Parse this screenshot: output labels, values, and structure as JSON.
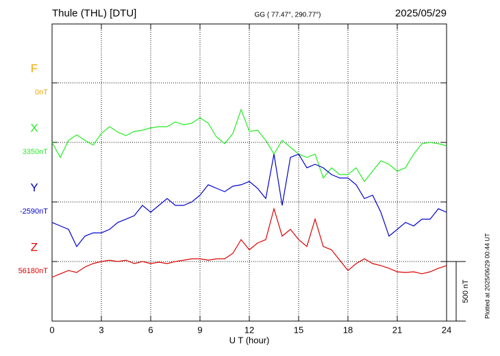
{
  "chart_data": {
    "type": "line",
    "title": "Thule (THL)  [DTU]",
    "subtitle": "GG ( 77.47°, 290.77°)",
    "date": "2025/05/29",
    "xlabel": "U T (hour)",
    "footnote": "Plotted at 2025/06/29 00:44 UT",
    "xlim": [
      0,
      24
    ],
    "xticks": [
      0,
      3,
      6,
      9,
      12,
      15,
      18,
      21,
      24
    ],
    "grid": true,
    "scale_bar": {
      "value": 500,
      "label": "500 nT"
    },
    "x": [
      0,
      0.5,
      1,
      1.5,
      2,
      2.5,
      3,
      3.5,
      4,
      4.5,
      5,
      5.5,
      6,
      6.5,
      7,
      7.5,
      8,
      8.5,
      9,
      9.5,
      10,
      10.5,
      11,
      11.5,
      12,
      12.5,
      13,
      13.5,
      14,
      14.5,
      15,
      15.5,
      16,
      16.5,
      17,
      17.5,
      18,
      18.5,
      19,
      19.5,
      20,
      20.5,
      21,
      21.5,
      22,
      22.5,
      23,
      23.5,
      24
    ],
    "series": [
      {
        "name": "F",
        "color": "#f0a800",
        "baseline": {
          "value": 0,
          "label": "0nT"
        }
      },
      {
        "name": "X",
        "color": "#22ee22",
        "baseline": {
          "value": 3350,
          "label": "3350nT"
        },
        "values": [
          3350,
          3224,
          3367,
          3413,
          3367,
          3327,
          3425,
          3482,
          3436,
          3407,
          3442,
          3453,
          3471,
          3482,
          3482,
          3522,
          3499,
          3511,
          3557,
          3511,
          3396,
          3339,
          3425,
          3626,
          3442,
          3453,
          3367,
          3252,
          3367,
          3310,
          3252,
          3224,
          3252,
          3051,
          3137,
          3080,
          3080,
          3137,
          3022,
          3109,
          3195,
          3166,
          3109,
          3137,
          3252,
          3339,
          3350,
          3339,
          3321
        ]
      },
      {
        "name": "Y",
        "color": "#0000cc",
        "baseline": {
          "value": -2590,
          "label": "-2590nT"
        },
        "values": [
          -2762,
          -2791,
          -2820,
          -2964,
          -2877,
          -2849,
          -2849,
          -2820,
          -2762,
          -2734,
          -2705,
          -2619,
          -2676,
          -2619,
          -2561,
          -2619,
          -2619,
          -2590,
          -2533,
          -2446,
          -2475,
          -2504,
          -2458,
          -2446,
          -2418,
          -2475,
          -2561,
          -2188,
          -2619,
          -2216,
          -2188,
          -2303,
          -2274,
          -2303,
          -2360,
          -2389,
          -2389,
          -2446,
          -2561,
          -2533,
          -2676,
          -2877,
          -2820,
          -2762,
          -2791,
          -2734,
          -2734,
          -2647,
          -2676
        ]
      },
      {
        "name": "Z",
        "color": "#dd0000",
        "baseline": {
          "value": 56180,
          "label": "56180nT"
        },
        "values": [
          56048,
          56077,
          56105,
          56088,
          56134,
          56163,
          56180,
          56191,
          56180,
          56191,
          56163,
          56180,
          56163,
          56174,
          56163,
          56180,
          56191,
          56203,
          56203,
          56191,
          56203,
          56203,
          56249,
          56364,
          56278,
          56335,
          56364,
          56623,
          56393,
          56450,
          56364,
          56306,
          56536,
          56306,
          56278,
          56191,
          56105,
          56163,
          56203,
          56163,
          56146,
          56123,
          56094,
          56088,
          56094,
          56077,
          56094,
          56123,
          56146
        ]
      }
    ]
  }
}
